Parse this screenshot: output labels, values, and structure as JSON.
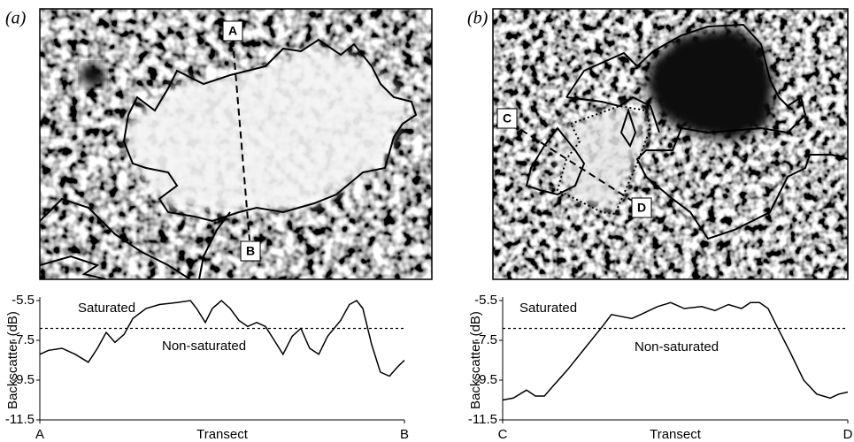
{
  "panels": [
    {
      "label": "(a)",
      "image_labels": [
        "A",
        "B"
      ]
    },
    {
      "label": "(b)",
      "image_labels": [
        "C",
        "D"
      ]
    }
  ],
  "chart_data": [
    {
      "type": "line",
      "ylabel": "Backscatter (dB)",
      "xlabel": "Transect",
      "annotations": [
        "Saturated",
        "Non-saturated"
      ],
      "threshold": -6.9,
      "x": [
        0,
        2.4,
        6.1,
        9.7,
        13.3,
        15.8,
        18.2,
        20.6,
        23.1,
        25.5,
        29.1,
        32.8,
        37.6,
        41.3,
        43,
        45.4,
        47.3,
        49.8,
        52.2,
        54.6,
        57,
        59.5,
        61.9,
        64.3,
        66.7,
        69.2,
        71.6,
        74,
        76.5,
        78.9,
        82.5,
        84.9,
        86.9,
        88.6,
        91,
        93.4,
        95.9,
        98.3,
        100
      ],
      "series": [
        {
          "color": "#000000",
          "values": [
            -8.2,
            -8.0,
            -7.9,
            -8.2,
            -8.6,
            -7.9,
            -7.1,
            -7.6,
            -7.2,
            -6.4,
            -5.9,
            -5.7,
            -5.6,
            -5.5,
            -5.9,
            -6.6,
            -5.9,
            -5.5,
            -5.9,
            -6.5,
            -6.8,
            -6.6,
            -6.8,
            -7.5,
            -8.2,
            -7.3,
            -6.9,
            -7.9,
            -8.2,
            -7.3,
            -6.5,
            -5.7,
            -5.5,
            -5.9,
            -7.7,
            -9.1,
            -9.3,
            -8.8,
            -8.5
          ]
        }
      ],
      "xlim": [
        0,
        100
      ],
      "xticks": [
        {
          "value": 0,
          "label": "A"
        },
        {
          "value": 100,
          "label": "B"
        }
      ],
      "ylim": [
        -11.5,
        -5.5
      ],
      "yticks": [
        -5.5,
        -7.5,
        -9.5,
        -11.5
      ]
    },
    {
      "type": "line",
      "ylabel": "Backscatter (dB)",
      "xlabel": "Transect",
      "annotations": [
        "Saturated",
        "Non-saturated"
      ],
      "threshold": -6.9,
      "x": [
        0,
        3.1,
        6.9,
        9.5,
        12.1,
        14.6,
        18.7,
        23.8,
        28.9,
        31.5,
        37.4,
        40,
        44.9,
        48.7,
        52.6,
        57.7,
        61.5,
        65.4,
        69.2,
        71.8,
        74.4,
        76.9,
        79.5,
        83.3,
        87.2,
        91,
        94.9,
        97.4,
        100
      ],
      "series": [
        {
          "color": "#000000",
          "values": [
            -10.5,
            -10.4,
            -10.0,
            -10.3,
            -10.3,
            -9.8,
            -9.0,
            -7.9,
            -6.8,
            -6.2,
            -6.4,
            -6.2,
            -5.8,
            -5.6,
            -5.9,
            -5.8,
            -6.0,
            -5.7,
            -5.9,
            -5.6,
            -5.6,
            -5.9,
            -6.8,
            -8.1,
            -9.5,
            -10.2,
            -10.4,
            -10.2,
            -10.1
          ]
        }
      ],
      "xlim": [
        0,
        100
      ],
      "xticks": [
        {
          "value": 0,
          "label": "C"
        },
        {
          "value": 100,
          "label": "D"
        }
      ],
      "ylim": [
        -11.5,
        -5.5
      ],
      "yticks": [
        -5.5,
        -7.5,
        -9.5,
        -11.5
      ]
    }
  ]
}
